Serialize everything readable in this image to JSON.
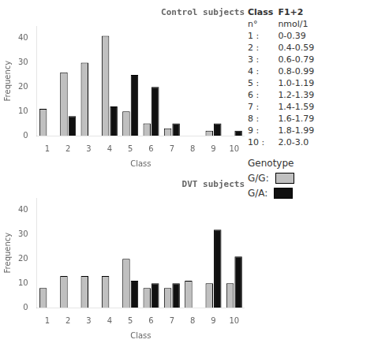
{
  "chart_data": [
    {
      "type": "bar",
      "title": "Control subjects",
      "xlabel": "Class",
      "ylabel": "Frequency",
      "categories": [
        "1",
        "2",
        "3",
        "4",
        "5",
        "6",
        "7",
        "8",
        "9",
        "10"
      ],
      "series": [
        {
          "name": "G/G:",
          "color": "#c0c0c0",
          "values": [
            11,
            26,
            30,
            41,
            10,
            5,
            3,
            0,
            2,
            0
          ]
        },
        {
          "name": "G/A:",
          "color": "#101010",
          "values": [
            0,
            8,
            0,
            12,
            25,
            20,
            5,
            0,
            5,
            2
          ]
        }
      ],
      "ylim": [
        0,
        45
      ],
      "yticks": [
        0,
        10,
        20,
        30,
        40
      ],
      "grid": false,
      "legend": "right",
      "annotations": [
        [
          "Class",
          "F1+2"
        ],
        [
          "n°",
          "nmol/1"
        ],
        [
          "1 :",
          "0-0.39"
        ],
        [
          "2 :",
          "0.4-0.59"
        ],
        [
          "3 :",
          "0.6-0.79"
        ],
        [
          "4 :",
          "0.8-0.99"
        ],
        [
          "5 :",
          "1.0-1.19"
        ],
        [
          "6 :",
          "1.2-1.39"
        ],
        [
          "7 :",
          "1.4-1.59"
        ],
        [
          "8 :",
          "1.6-1.79"
        ],
        [
          "9 :",
          "1.8-1.99"
        ],
        [
          "10 :",
          "2.0-3.0"
        ],
        [
          "Genotype"
        ]
      ]
    },
    {
      "type": "bar",
      "title": "DVT subjects",
      "xlabel": "Class",
      "ylabel": "Frequency",
      "categories": [
        "1",
        "2",
        "3",
        "4",
        "5",
        "6",
        "7",
        "8",
        "9",
        "10"
      ],
      "series": [
        {
          "name": "G/G:",
          "color": "#c0c0c0",
          "values": [
            8,
            13,
            13,
            13,
            20,
            8,
            8,
            11,
            10,
            10
          ]
        },
        {
          "name": "G/A:",
          "color": "#101010",
          "values": [
            0,
            0,
            0,
            0,
            11,
            10,
            10,
            0,
            32,
            21
          ]
        }
      ],
      "ylim": [
        0,
        45
      ],
      "yticks": [
        0,
        10,
        20,
        30,
        40
      ],
      "grid": false
    }
  ]
}
